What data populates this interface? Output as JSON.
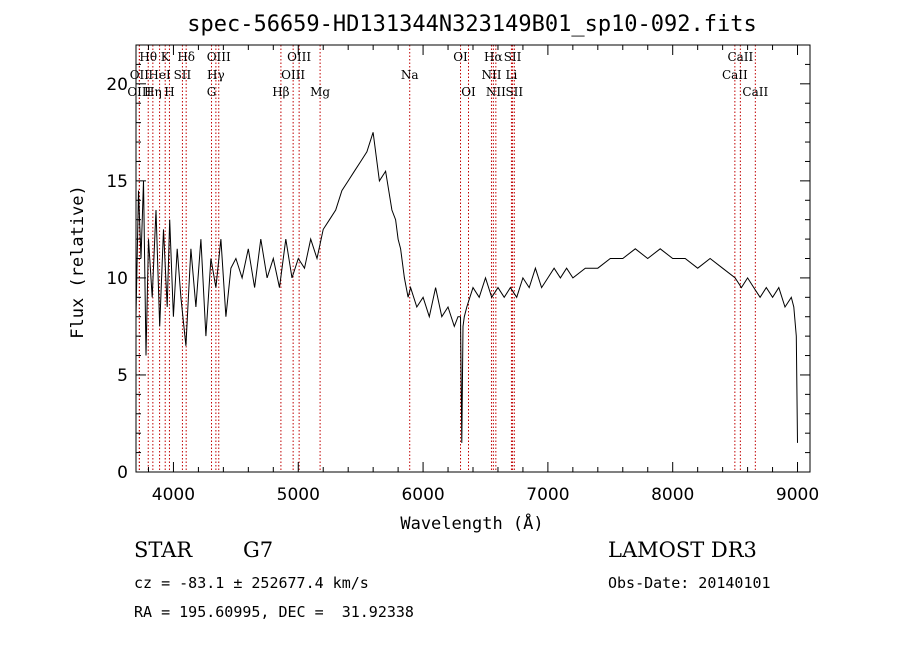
{
  "chart_data": {
    "type": "line",
    "title": "spec-56659-HD131344N323149B01_sp10-092.fits",
    "xlabel": "Wavelength (Å)",
    "ylabel": "Flux (relative)",
    "xlim": [
      3700,
      9100
    ],
    "ylim": [
      0,
      22
    ],
    "x_ticks": [
      4000,
      5000,
      6000,
      7000,
      8000,
      9000
    ],
    "y_ticks": [
      0,
      5,
      10,
      15,
      20
    ],
    "grid": false,
    "series": [
      {
        "color": "#000000",
        "x": [
          3700,
          3720,
          3740,
          3760,
          3780,
          3800,
          3830,
          3860,
          3890,
          3920,
          3950,
          3970,
          4000,
          4030,
          4060,
          4100,
          4140,
          4180,
          4220,
          4260,
          4300,
          4340,
          4380,
          4420,
          4460,
          4500,
          4550,
          4600,
          4650,
          4700,
          4750,
          4800,
          4850,
          4900,
          4950,
          5000,
          5050,
          5100,
          5150,
          5200,
          5250,
          5300,
          5350,
          5400,
          5450,
          5500,
          5550,
          5600,
          5650,
          5700,
          5750,
          5780,
          5800,
          5820,
          5850,
          5880,
          5900,
          5950,
          6000,
          6050,
          6100,
          6150,
          6200,
          6250,
          6280,
          6300,
          6310,
          6320,
          6330,
          6350,
          6400,
          6450,
          6500,
          6550,
          6600,
          6650,
          6700,
          6750,
          6800,
          6850,
          6900,
          6950,
          7000,
          7050,
          7100,
          7150,
          7200,
          7300,
          7400,
          7500,
          7600,
          7700,
          7800,
          7900,
          8000,
          8100,
          8200,
          8300,
          8400,
          8500,
          8550,
          8600,
          8650,
          8700,
          8750,
          8800,
          8850,
          8900,
          8950,
          8970,
          8990,
          9000
        ],
        "y": [
          8.0,
          14.5,
          11.0,
          15.0,
          6.0,
          12.0,
          9.0,
          13.5,
          7.5,
          12.5,
          8.5,
          13.0,
          8.0,
          11.5,
          9.0,
          6.5,
          11.5,
          8.5,
          12.0,
          7.0,
          11.0,
          9.5,
          12.0,
          8.0,
          10.5,
          11.0,
          10.0,
          11.5,
          9.5,
          12.0,
          10.0,
          11.0,
          9.5,
          12.0,
          10.0,
          11.0,
          10.5,
          12.0,
          11.0,
          12.5,
          13.0,
          13.5,
          14.5,
          15.0,
          15.5,
          16.0,
          16.5,
          17.5,
          15.0,
          15.5,
          13.5,
          13.0,
          12.0,
          11.5,
          10.0,
          9.0,
          9.5,
          8.5,
          9.0,
          8.0,
          9.5,
          8.0,
          8.5,
          7.5,
          8.0,
          8.0,
          1.5,
          7.5,
          8.0,
          8.5,
          9.5,
          9.0,
          10.0,
          9.0,
          9.5,
          9.0,
          9.5,
          9.0,
          10.0,
          9.5,
          10.5,
          9.5,
          10.0,
          10.5,
          10.0,
          10.5,
          10.0,
          10.5,
          10.5,
          11.0,
          11.0,
          11.5,
          11.0,
          11.5,
          11.0,
          11.0,
          10.5,
          11.0,
          10.5,
          10.0,
          9.5,
          10.0,
          9.5,
          9.0,
          9.5,
          9.0,
          9.5,
          8.5,
          9.0,
          8.5,
          7.0,
          1.5
        ]
      }
    ],
    "spectral_lines": [
      {
        "label": "Hθ",
        "x": 3798,
        "row": 0
      },
      {
        "label": "K",
        "x": 3934,
        "row": 0
      },
      {
        "label": "Hδ",
        "x": 4102,
        "row": 0
      },
      {
        "label": "OIII",
        "x": 4363,
        "row": 0
      },
      {
        "label": "OIII",
        "x": 5007,
        "row": 0
      },
      {
        "label": "OI",
        "x": 6300,
        "row": 0
      },
      {
        "label": "Hα",
        "x": 6563,
        "row": 0
      },
      {
        "label": "SII",
        "x": 6717,
        "row": 0
      },
      {
        "label": "CaII",
        "x": 8542,
        "row": 0
      },
      {
        "label": "OII",
        "x": 3727,
        "row": 1
      },
      {
        "label": "HeI",
        "x": 3889,
        "row": 1
      },
      {
        "label": "SII",
        "x": 4072,
        "row": 1
      },
      {
        "label": "Hγ",
        "x": 4340,
        "row": 1
      },
      {
        "label": "OIII",
        "x": 4959,
        "row": 1
      },
      {
        "label": "Na",
        "x": 5893,
        "row": 1
      },
      {
        "label": "NII",
        "x": 6548,
        "row": 1
      },
      {
        "label": "Li",
        "x": 6708,
        "row": 1
      },
      {
        "label": "CaII",
        "x": 8498,
        "row": 1
      },
      {
        "label": "OIII",
        "x": 3727,
        "row": 2
      },
      {
        "label": "Hη",
        "x": 3835,
        "row": 2
      },
      {
        "label": "H",
        "x": 3968,
        "row": 2
      },
      {
        "label": "G",
        "x": 4305,
        "row": 2
      },
      {
        "label": "Hβ",
        "x": 4861,
        "row": 2
      },
      {
        "label": "Mg",
        "x": 5175,
        "row": 2
      },
      {
        "label": "OI",
        "x": 6364,
        "row": 2
      },
      {
        "label": "NII",
        "x": 6583,
        "row": 2
      },
      {
        "label": "SII",
        "x": 6731,
        "row": 2
      },
      {
        "label": "CaII",
        "x": 8662,
        "row": 2
      }
    ]
  },
  "info": {
    "object_class": "STAR",
    "subclass": "G7",
    "survey": "LAMOST DR3",
    "redshift": "cz = -83.1 ± 252677.4 km/s",
    "obs_date": "Obs-Date: 20140101",
    "coords": "RA = 195.60995, DEC =  31.92338"
  }
}
